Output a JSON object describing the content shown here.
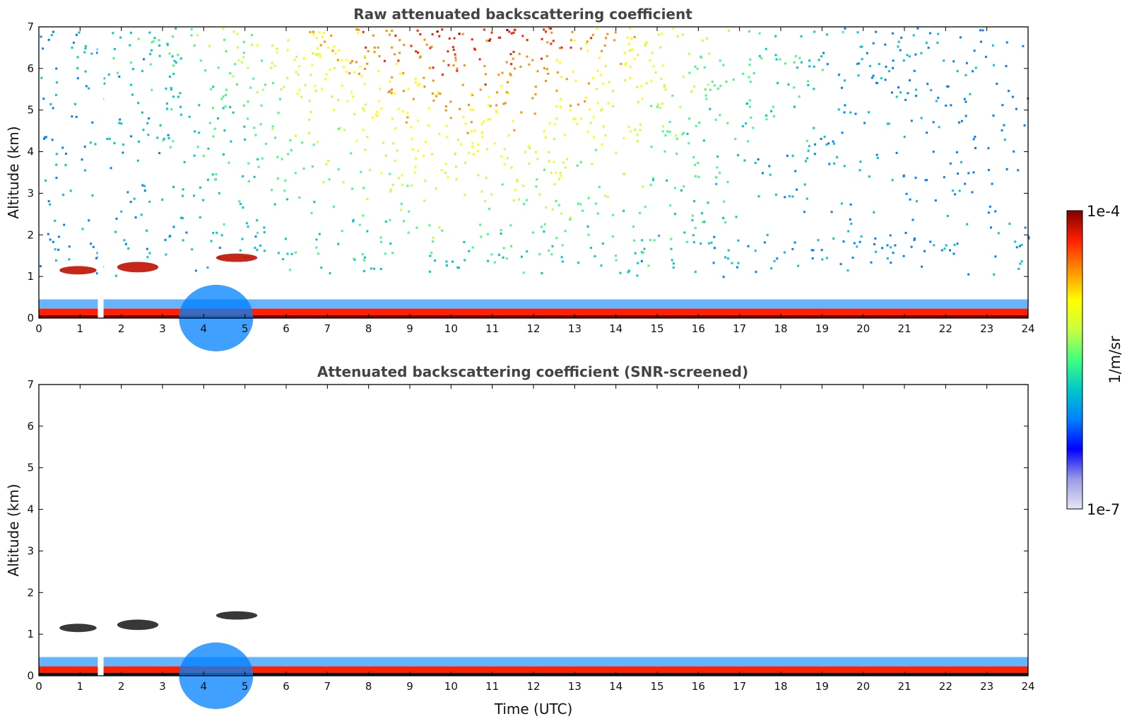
{
  "chart_data": [
    {
      "type": "heatmap",
      "title": "Raw attenuated backscattering coefficient",
      "xlabel": "",
      "ylabel": "Altitude (km)",
      "xlim": [
        0,
        24
      ],
      "ylim": [
        0,
        7
      ],
      "x_ticks": [
        0,
        1,
        2,
        3,
        4,
        5,
        6,
        7,
        8,
        9,
        10,
        11,
        12,
        13,
        14,
        15,
        16,
        17,
        18,
        19,
        20,
        21,
        22,
        23,
        24
      ],
      "y_ticks": [
        0,
        1,
        2,
        3,
        4,
        5,
        6,
        7
      ],
      "features": [
        {
          "name": "boundary layer",
          "x_range": [
            0,
            24
          ],
          "altitude_km": [
            0,
            0.45
          ],
          "level": "high"
        },
        {
          "name": "aerosol dome",
          "x_range": [
            3.4,
            5.2
          ],
          "altitude_km": [
            0,
            0.8
          ],
          "level": "medium"
        },
        {
          "name": "cloud layer",
          "x_range": [
            0.5,
            1.4
          ],
          "altitude_km": [
            1.05,
            1.25
          ],
          "level": "high"
        },
        {
          "name": "cloud layer",
          "x_range": [
            1.9,
            2.9
          ],
          "altitude_km": [
            1.1,
            1.35
          ],
          "level": "high"
        },
        {
          "name": "cloud layer",
          "x_range": [
            4.3,
            5.3
          ],
          "altitude_km": [
            1.35,
            1.55
          ],
          "level": "high"
        },
        {
          "name": "background noise",
          "x_range": [
            0,
            24
          ],
          "altitude_km": [
            1,
            7
          ],
          "level": "noisy"
        }
      ],
      "data_gap_x": [
        1.43,
        1.57
      ]
    },
    {
      "type": "heatmap",
      "title": "Attenuated backscattering coefficient (SNR-screened)",
      "xlabel": "Time (UTC)",
      "ylabel": "Altitude (km)",
      "xlim": [
        0,
        24
      ],
      "ylim": [
        0,
        7
      ],
      "x_ticks": [
        0,
        1,
        2,
        3,
        4,
        5,
        6,
        7,
        8,
        9,
        10,
        11,
        12,
        13,
        14,
        15,
        16,
        17,
        18,
        19,
        20,
        21,
        22,
        23,
        24
      ],
      "y_ticks": [
        0,
        1,
        2,
        3,
        4,
        5,
        6,
        7
      ],
      "features": [
        {
          "name": "boundary layer",
          "x_range": [
            0,
            24
          ],
          "altitude_km": [
            0,
            0.45
          ],
          "level": "high"
        },
        {
          "name": "aerosol dome",
          "x_range": [
            3.4,
            5.2
          ],
          "altitude_km": [
            0,
            0.8
          ],
          "level": "medium"
        },
        {
          "name": "cloud layer",
          "x_range": [
            0.5,
            1.4
          ],
          "altitude_km": [
            1.05,
            1.25
          ],
          "level": "high"
        },
        {
          "name": "cloud layer",
          "x_range": [
            1.9,
            2.9
          ],
          "altitude_km": [
            1.1,
            1.35
          ],
          "level": "high"
        },
        {
          "name": "cloud layer",
          "x_range": [
            4.3,
            5.3
          ],
          "altitude_km": [
            1.35,
            1.55
          ],
          "level": "high"
        }
      ],
      "data_gap_x": [
        1.43,
        1.57
      ]
    }
  ],
  "colorbar": {
    "max_label": "1e-4",
    "min_label": "1e-7",
    "unit_label": "1/m/sr",
    "colors": [
      "#e6e6f5",
      "#9a9ae6",
      "#0000ff",
      "#0080ff",
      "#00c8c8",
      "#40ff80",
      "#c8ff40",
      "#ffff00",
      "#ff9000",
      "#ff2000",
      "#800000"
    ]
  }
}
